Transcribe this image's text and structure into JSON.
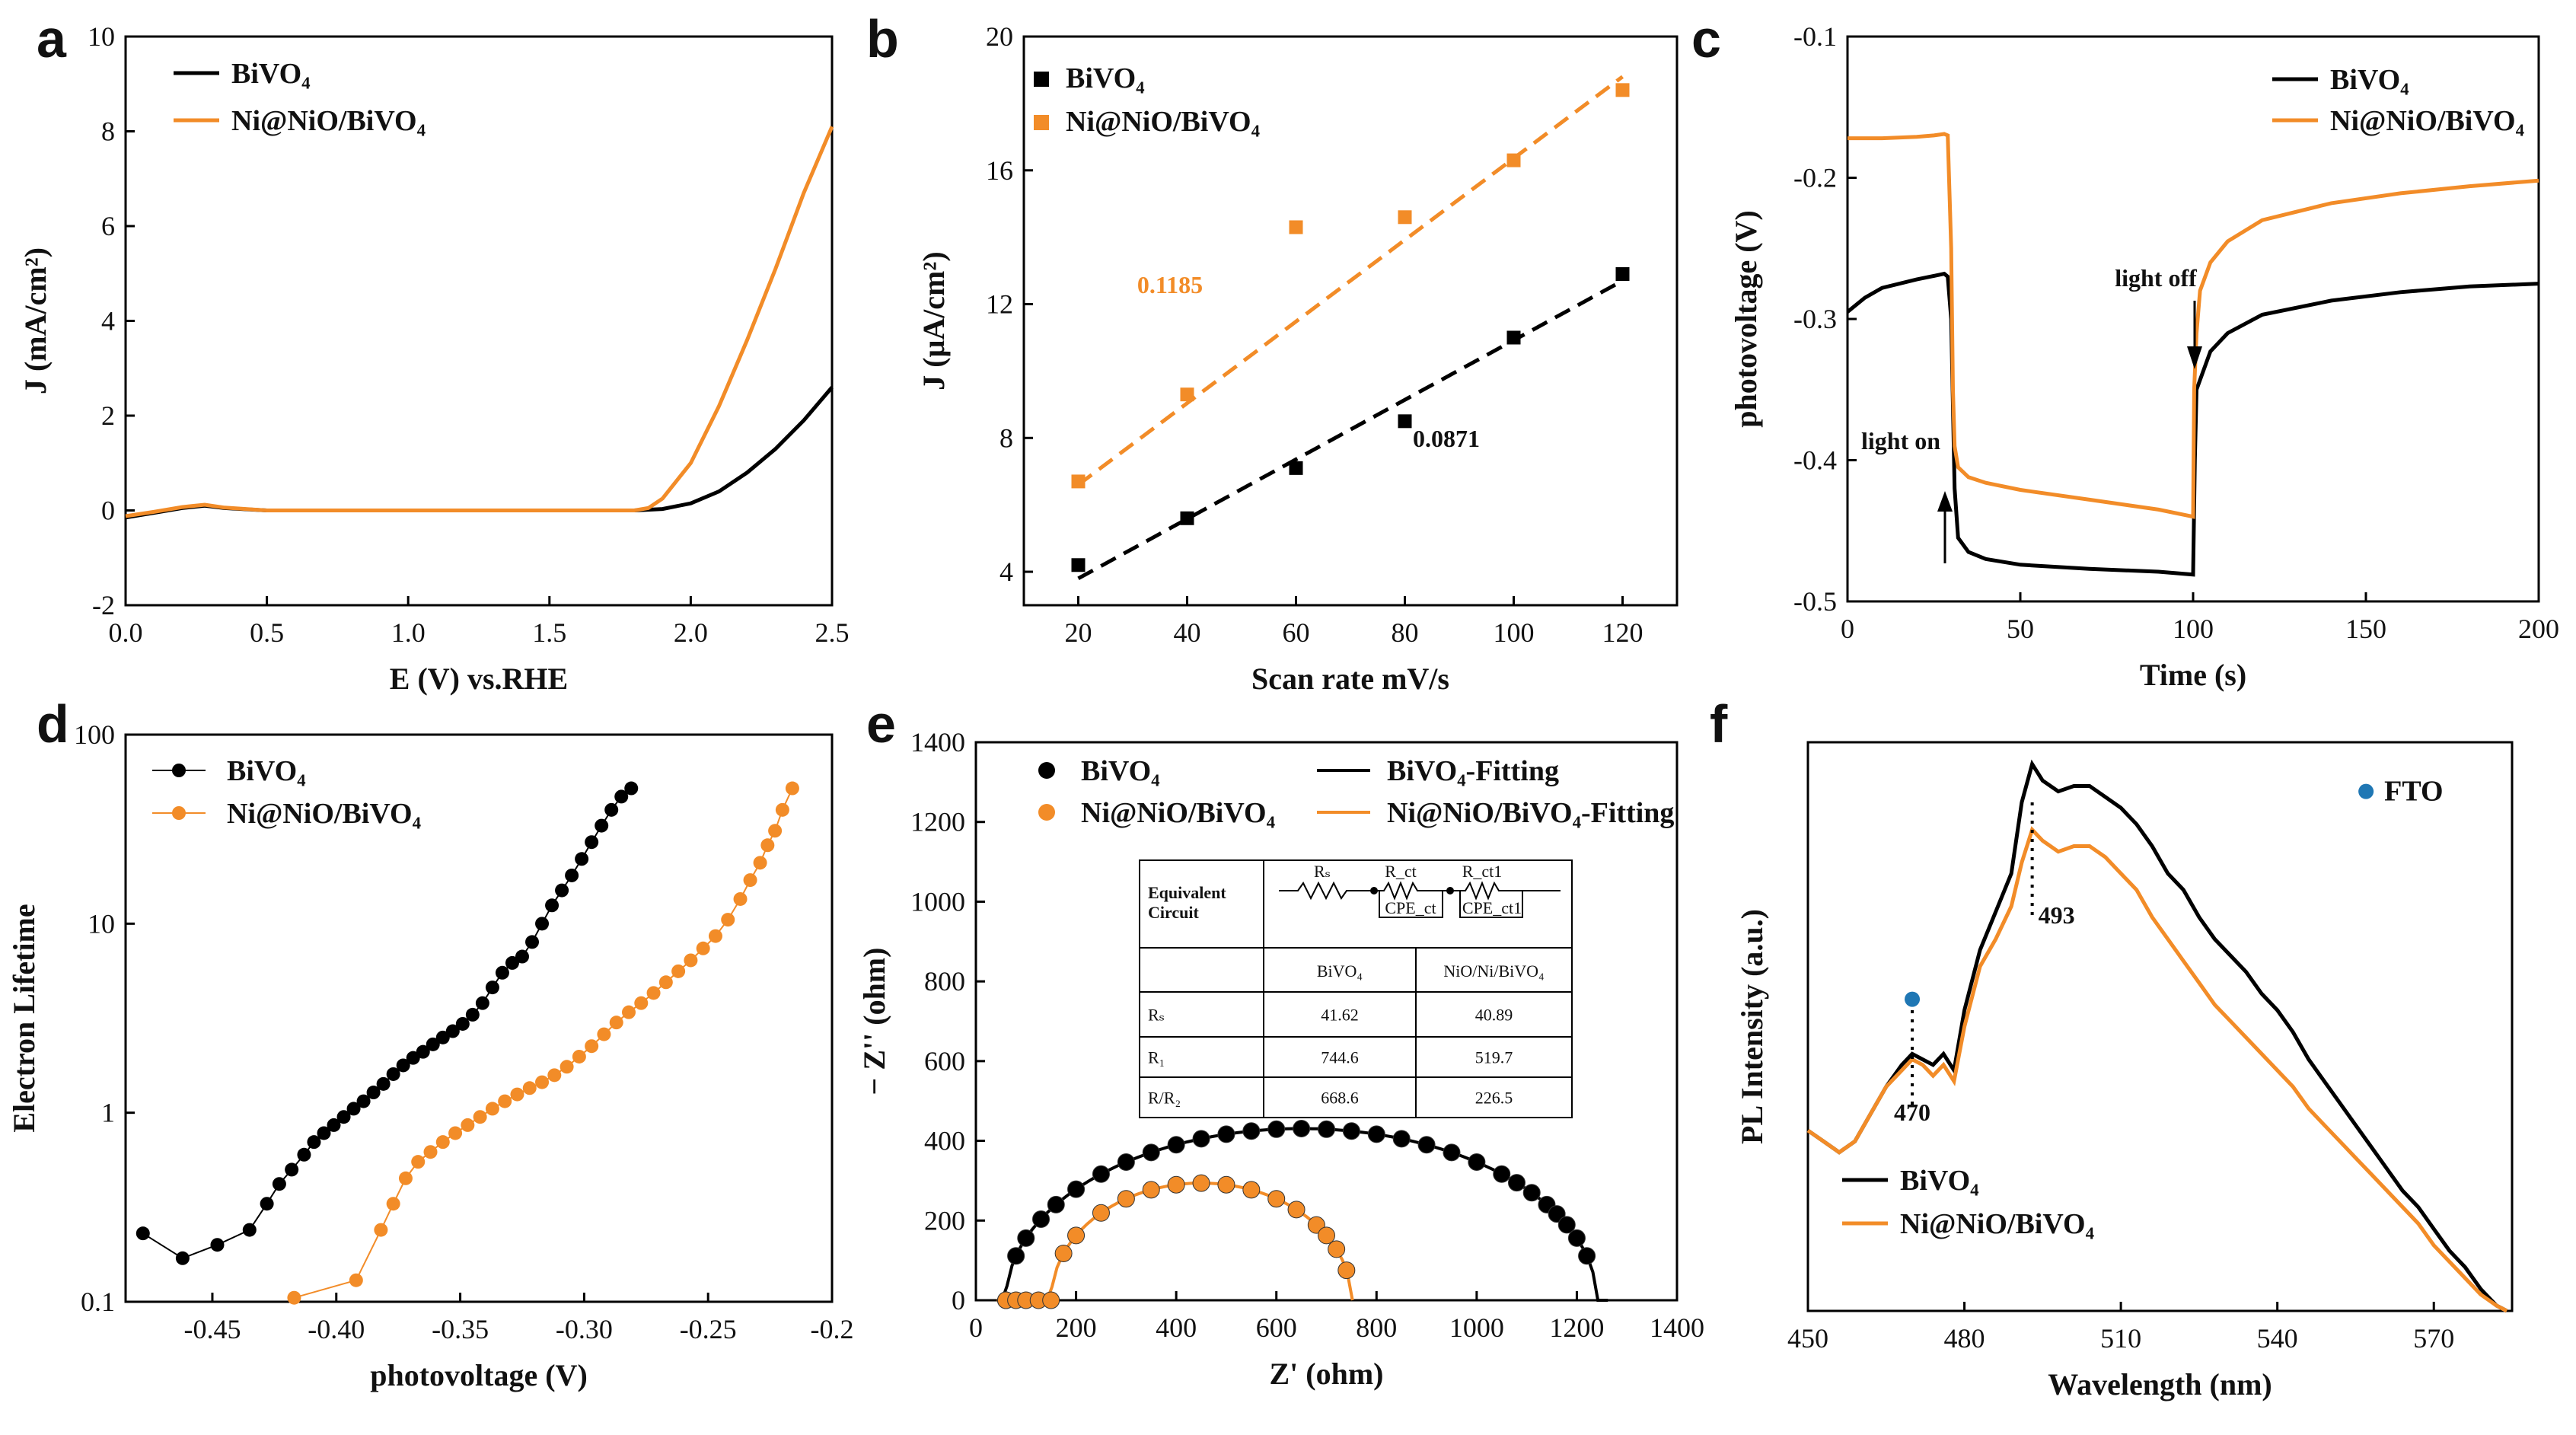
{
  "colors": {
    "black": "#000000",
    "orange": "#f28c28",
    "fto": "#1f77b4"
  },
  "chart_data": [
    {
      "panel": "a",
      "type": "line",
      "xlabel": "E (V) vs.RHE",
      "ylabel": "J (mA/cm²)",
      "xlim": [
        0,
        2.5
      ],
      "ylim": [
        -2,
        10
      ],
      "xticks": [
        "0.0",
        "0.5",
        "1.0",
        "1.5",
        "2.0",
        "2.5"
      ],
      "yticks": [
        "-2",
        "0",
        "2",
        "4",
        "6",
        "8",
        "10"
      ],
      "legend": [
        "BiVO₄",
        "Ni@NiO/BiVO₄"
      ],
      "series": [
        {
          "name": "BiVO₄",
          "color": "black",
          "x": [
            0,
            0.1,
            0.2,
            0.28,
            0.35,
            0.5,
            1.0,
            1.5,
            1.8,
            1.9,
            2.0,
            2.1,
            2.2,
            2.3,
            2.4,
            2.5
          ],
          "y": [
            -0.15,
            -0.05,
            0.05,
            0.1,
            0.05,
            0.0,
            0.0,
            0.0,
            0.0,
            0.03,
            0.15,
            0.4,
            0.8,
            1.3,
            1.9,
            2.6
          ]
        },
        {
          "name": "Ni@NiO/BiVO₄",
          "color": "orange",
          "x": [
            0,
            0.1,
            0.2,
            0.28,
            0.35,
            0.5,
            1.0,
            1.5,
            1.8,
            1.85,
            1.9,
            2.0,
            2.1,
            2.2,
            2.3,
            2.4,
            2.5
          ],
          "y": [
            -0.12,
            -0.03,
            0.07,
            0.12,
            0.06,
            0.0,
            0.0,
            0.0,
            0.0,
            0.05,
            0.25,
            1.0,
            2.2,
            3.6,
            5.1,
            6.7,
            8.1
          ]
        }
      ]
    },
    {
      "panel": "b",
      "type": "scatter",
      "xlabel": "Scan rate mV/s",
      "ylabel": "J (μA/cm²)",
      "xlim": [
        10,
        130
      ],
      "ylim": [
        3,
        20
      ],
      "xticks": [
        "20",
        "40",
        "60",
        "80",
        "100",
        "120"
      ],
      "yticks": [
        "4",
        "8",
        "12",
        "16",
        "20"
      ],
      "legend": [
        "BiVO₄",
        "Ni@NiO/BiVO₄"
      ],
      "annotations": [
        "0.1185",
        "0.0871"
      ],
      "series": [
        {
          "name": "BiVO₄",
          "color": "black",
          "x": [
            20,
            40,
            60,
            80,
            100,
            120
          ],
          "y": [
            4.2,
            5.6,
            7.1,
            8.5,
            11.0,
            12.9
          ],
          "fit": [
            [
              20,
              3.8
            ],
            [
              120,
              12.7
            ]
          ]
        },
        {
          "name": "Ni@NiO/BiVO₄",
          "color": "orange",
          "x": [
            20,
            40,
            60,
            80,
            100,
            120
          ],
          "y": [
            6.7,
            9.3,
            14.3,
            14.6,
            16.3,
            18.4
          ],
          "fit": [
            [
              20,
              6.6
            ],
            [
              120,
              18.8
            ]
          ]
        }
      ]
    },
    {
      "panel": "c",
      "type": "line",
      "xlabel": "Time (s)",
      "ylabel": "photovoltage (V)",
      "xlim": [
        0,
        200
      ],
      "ylim": [
        -0.5,
        -0.1
      ],
      "xticks": [
        "0",
        "50",
        "100",
        "150",
        "200"
      ],
      "yticks": [
        "-0.5",
        "-0.4",
        "-0.3",
        "-0.2",
        "-0.1"
      ],
      "legend": [
        "BiVO₄",
        "Ni@NiO/BiVO₄"
      ],
      "annotations": [
        "light on",
        "light off"
      ],
      "series": [
        {
          "name": "BiVO₄",
          "color": "black",
          "x": [
            0,
            5,
            10,
            20,
            28,
            29,
            30,
            31,
            32,
            35,
            40,
            50,
            70,
            90,
            100,
            100.5,
            101,
            105,
            110,
            120,
            140,
            160,
            180,
            200
          ],
          "y": [
            -0.295,
            -0.285,
            -0.278,
            -0.272,
            -0.268,
            -0.27,
            -0.3,
            -0.42,
            -0.455,
            -0.465,
            -0.47,
            -0.474,
            -0.477,
            -0.479,
            -0.481,
            -0.4,
            -0.35,
            -0.323,
            -0.31,
            -0.297,
            -0.287,
            -0.281,
            -0.277,
            -0.275
          ]
        },
        {
          "name": "Ni@NiO/BiVO₄",
          "color": "orange",
          "x": [
            0,
            10,
            20,
            25,
            28,
            29,
            30,
            30.5,
            31,
            32,
            35,
            40,
            50,
            70,
            90,
            100,
            100.3,
            101,
            102,
            105,
            110,
            120,
            140,
            160,
            180,
            200
          ],
          "y": [
            -0.172,
            -0.172,
            -0.171,
            -0.17,
            -0.169,
            -0.17,
            -0.25,
            -0.35,
            -0.39,
            -0.405,
            -0.412,
            -0.416,
            -0.421,
            -0.428,
            -0.435,
            -0.44,
            -0.35,
            -0.31,
            -0.28,
            -0.26,
            -0.245,
            -0.23,
            -0.218,
            -0.211,
            -0.206,
            -0.202
          ]
        }
      ]
    },
    {
      "panel": "d",
      "type": "scatter",
      "yscale": "log",
      "xlabel": "photovoltage (V)",
      "ylabel": "Electron Lifetime",
      "xlim": [
        -0.485,
        -0.2
      ],
      "ylim": [
        0.1,
        100
      ],
      "xticks": [
        "-0.45",
        "-0.40",
        "-0.35",
        "-0.30",
        "-0.25",
        "-0.2"
      ],
      "yticks": [
        "0.1",
        "1",
        "10",
        "100"
      ],
      "legend": [
        "BiVO₄",
        "Ni@NiO/BiVO₄"
      ],
      "series": [
        {
          "name": "BiVO₄",
          "color": "black",
          "x": [
            -0.478,
            -0.462,
            -0.448,
            -0.435,
            -0.428,
            -0.423,
            -0.418,
            -0.413,
            -0.409,
            -0.405,
            -0.401,
            -0.397,
            -0.393,
            -0.389,
            -0.385,
            -0.381,
            -0.377,
            -0.373,
            -0.369,
            -0.365,
            -0.361,
            -0.357,
            -0.353,
            -0.349,
            -0.345,
            -0.341,
            -0.337,
            -0.333,
            -0.329,
            -0.325,
            -0.321,
            -0.317,
            -0.313,
            -0.309,
            -0.305,
            -0.301,
            -0.297,
            -0.293,
            -0.289,
            -0.285,
            -0.281
          ],
          "y": [
            0.23,
            0.17,
            0.2,
            0.24,
            0.33,
            0.42,
            0.5,
            0.6,
            0.7,
            0.78,
            0.86,
            0.95,
            1.05,
            1.15,
            1.28,
            1.42,
            1.6,
            1.78,
            1.95,
            2.1,
            2.3,
            2.5,
            2.7,
            2.95,
            3.3,
            3.8,
            4.6,
            5.5,
            6.2,
            6.7,
            8,
            10,
            12.5,
            15,
            18,
            22,
            27,
            33,
            40,
            47,
            52
          ]
        },
        {
          "name": "Ni@NiO/BiVO₄",
          "color": "orange",
          "x": [
            -0.417,
            -0.392,
            -0.382,
            -0.377,
            -0.372,
            -0.367,
            -0.362,
            -0.357,
            -0.352,
            -0.347,
            -0.342,
            -0.337,
            -0.332,
            -0.327,
            -0.322,
            -0.317,
            -0.312,
            -0.307,
            -0.302,
            -0.297,
            -0.292,
            -0.287,
            -0.282,
            -0.277,
            -0.272,
            -0.267,
            -0.262,
            -0.257,
            -0.252,
            -0.247,
            -0.242,
            -0.237,
            -0.233,
            -0.229,
            -0.226,
            -0.223,
            -0.22,
            -0.216
          ],
          "y": [
            0.105,
            0.13,
            0.24,
            0.33,
            0.45,
            0.55,
            0.62,
            0.7,
            0.78,
            0.86,
            0.95,
            1.05,
            1.15,
            1.25,
            1.35,
            1.45,
            1.58,
            1.75,
            1.98,
            2.25,
            2.6,
            3.0,
            3.4,
            3.8,
            4.3,
            4.9,
            5.6,
            6.4,
            7.4,
            8.6,
            10.5,
            13.5,
            17,
            21,
            26,
            31,
            40,
            52
          ]
        }
      ]
    },
    {
      "panel": "e",
      "type": "scatter",
      "xlabel": "Z' (ohm)",
      "ylabel": "− Z'' (ohm)",
      "xlim": [
        0,
        1400
      ],
      "ylim": [
        0,
        1400
      ],
      "xticks": [
        "0",
        "200",
        "400",
        "600",
        "800",
        "1000",
        "1200",
        "1400"
      ],
      "yticks": [
        "0",
        "200",
        "400",
        "600",
        "800",
        "1000",
        "1200",
        "1400"
      ],
      "legend": [
        "BiVO₄",
        "Ni@NiO/BiVO₄",
        "BiVO₄-Fitting",
        "Ni@NiO/BiVO₄-Fitting"
      ],
      "table": {
        "header_label": "Equivalent Circuit",
        "circuit_labels": [
          "Rₛ",
          "R_ct",
          "CPE_ct",
          "R_ct1",
          "CPE_ct1"
        ],
        "columns": [
          "",
          "BiVO₄",
          "NiO/Ni/BiVO₄"
        ],
        "rows": [
          [
            "Rₛ",
            "41.62",
            "40.89"
          ],
          [
            "R₁",
            "744.6",
            "519.7"
          ],
          [
            "R/R₂",
            "668.6",
            "226.5"
          ]
        ]
      },
      "series": [
        {
          "name": "BiVO₄",
          "color": "black",
          "center": 650,
          "radius": 590,
          "x_points": [
            60,
            80,
            100,
            130,
            160,
            200,
            250,
            300,
            350,
            400,
            450,
            500,
            550,
            600,
            650,
            700,
            750,
            800,
            850,
            900,
            950,
            1000,
            1050,
            1080,
            1110,
            1140,
            1160,
            1180,
            1200,
            1220
          ],
          "fit_x": [
            42,
            1270
          ]
        },
        {
          "name": "Ni@NiO/BiVO₄",
          "color": "orange",
          "center": 450,
          "radius": 300,
          "x_points": [
            60,
            80,
            100,
            125,
            150,
            175,
            200,
            250,
            300,
            350,
            400,
            450,
            500,
            550,
            600,
            640,
            680,
            700,
            720,
            740
          ],
          "fit_x": [
            42,
            760
          ]
        }
      ]
    },
    {
      "panel": "f",
      "type": "line",
      "xlabel": "Wavelength (nm)",
      "ylabel": "PL Intensity (a.u.)",
      "xlim": [
        450,
        585
      ],
      "xticks": [
        "450",
        "480",
        "510",
        "540",
        "570"
      ],
      "legend": [
        "BiVO₄",
        "Ni@NiO/BiVO₄"
      ],
      "annotations": [
        "470",
        "493",
        "FTO"
      ],
      "series": [
        {
          "name": "BiVO₄",
          "color": "black",
          "x": [
            450,
            453,
            456,
            459,
            462,
            465,
            468,
            470,
            472,
            474,
            476,
            478,
            480,
            483,
            486,
            489,
            491,
            493,
            495,
            498,
            501,
            504,
            507,
            510,
            513,
            516,
            519,
            522,
            525,
            528,
            531,
            534,
            537,
            540,
            543,
            546,
            549,
            552,
            555,
            558,
            561,
            564,
            567,
            570,
            573,
            576,
            579,
            582,
            584
          ],
          "y": [
            0.33,
            0.31,
            0.29,
            0.31,
            0.36,
            0.41,
            0.45,
            0.47,
            0.46,
            0.45,
            0.47,
            0.44,
            0.55,
            0.66,
            0.73,
            0.8,
            0.93,
            1.0,
            0.97,
            0.95,
            0.96,
            0.96,
            0.94,
            0.92,
            0.89,
            0.85,
            0.8,
            0.77,
            0.72,
            0.68,
            0.65,
            0.62,
            0.58,
            0.55,
            0.51,
            0.46,
            0.42,
            0.38,
            0.34,
            0.3,
            0.26,
            0.22,
            0.19,
            0.15,
            0.11,
            0.08,
            0.04,
            0.01,
            0.0
          ]
        },
        {
          "name": "Ni@NiO/BiVO₄",
          "color": "orange",
          "x": [
            450,
            453,
            456,
            459,
            462,
            465,
            468,
            470,
            472,
            474,
            476,
            478,
            480,
            483,
            486,
            489,
            491,
            493,
            495,
            498,
            501,
            504,
            507,
            510,
            513,
            516,
            519,
            522,
            525,
            528,
            531,
            534,
            537,
            540,
            543,
            546,
            549,
            552,
            555,
            558,
            561,
            564,
            567,
            570,
            573,
            576,
            579,
            582,
            584
          ],
          "y": [
            0.33,
            0.31,
            0.29,
            0.31,
            0.36,
            0.41,
            0.44,
            0.46,
            0.45,
            0.43,
            0.45,
            0.42,
            0.52,
            0.63,
            0.68,
            0.74,
            0.82,
            0.88,
            0.86,
            0.84,
            0.85,
            0.85,
            0.83,
            0.8,
            0.77,
            0.72,
            0.68,
            0.64,
            0.6,
            0.56,
            0.53,
            0.5,
            0.47,
            0.44,
            0.41,
            0.37,
            0.34,
            0.31,
            0.28,
            0.25,
            0.22,
            0.19,
            0.16,
            0.12,
            0.09,
            0.06,
            0.03,
            0.01,
            0.0
          ]
        }
      ],
      "markers": [
        {
          "label": "470",
          "x": 470,
          "y": 0.57
        },
        {
          "label": "FTO",
          "x": 557,
          "y": 0.95
        }
      ]
    }
  ]
}
